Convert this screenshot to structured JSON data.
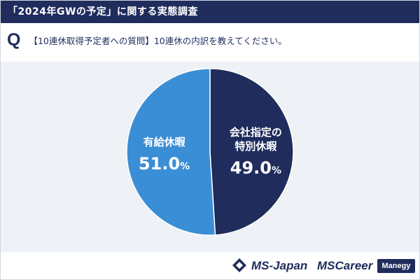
{
  "header": {
    "title": "「2024年GWの予定」に関する実態調査"
  },
  "question": {
    "mark": "Q",
    "text": "【10連休取得予定者への質問】10連休の内訳を教えてください。"
  },
  "chart_data": {
    "type": "pie",
    "title": "",
    "slices": [
      {
        "name_lines": [
          "会社指定の",
          "特別休暇"
        ],
        "value": 49.0,
        "label": "49.0",
        "unit": "%",
        "color": "#1f2c5c"
      },
      {
        "name_lines": [
          "有給休暇"
        ],
        "value": 51.0,
        "label": "51.0",
        "unit": "%",
        "color": "#3a8ed6"
      }
    ]
  },
  "footer": {
    "logo_msjapan": "MS-Japan",
    "logo_mscareer": "MSCareer",
    "logo_manegy": "Manegy"
  }
}
